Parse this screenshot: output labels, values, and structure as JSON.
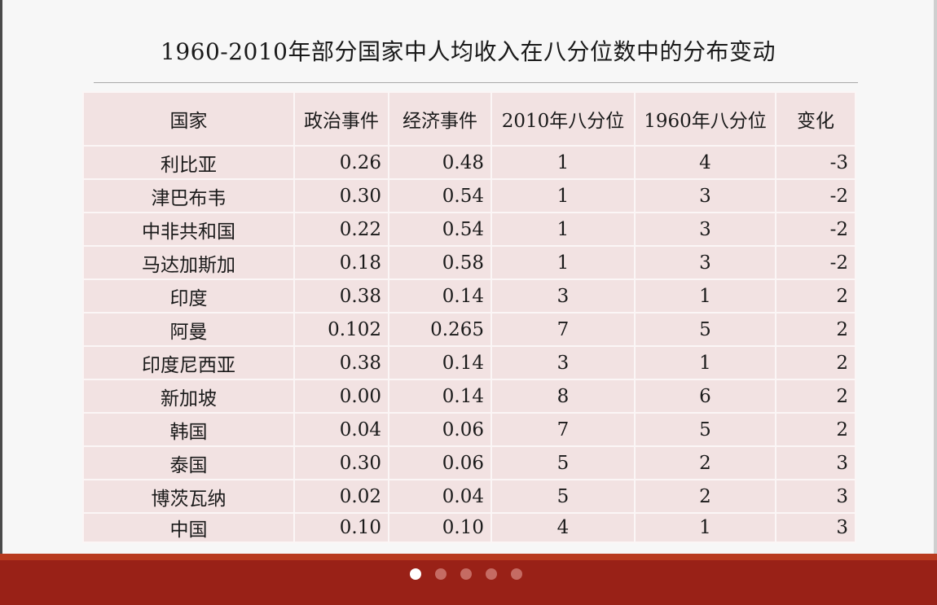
{
  "title": "1960-2010年部分国家中人均收入在八分位数中的分布变动",
  "table": {
    "headers": [
      "国家",
      "政治事件",
      "经济事件",
      "2010年八分位",
      "1960年八分位",
      "变化"
    ],
    "rows": [
      [
        "利比亚",
        "0.26",
        "0.48",
        "1",
        "4",
        "-3"
      ],
      [
        "津巴布韦",
        "0.30",
        "0.54",
        "1",
        "3",
        "-2"
      ],
      [
        "中非共和国",
        "0.22",
        "0.54",
        "1",
        "3",
        "-2"
      ],
      [
        "马达加斯加",
        "0.18",
        "0.58",
        "1",
        "3",
        "-2"
      ],
      [
        "印度",
        "0.38",
        "0.14",
        "3",
        "1",
        "2"
      ],
      [
        "阿曼",
        "0.102",
        "0.265",
        "7",
        "5",
        "2"
      ],
      [
        "印度尼西亚",
        "0.38",
        "0.14",
        "3",
        "1",
        "2"
      ],
      [
        "新加坡",
        "0.00",
        "0.14",
        "8",
        "6",
        "2"
      ],
      [
        "韩国",
        "0.04",
        "0.06",
        "7",
        "5",
        "2"
      ],
      [
        "泰国",
        "0.30",
        "0.06",
        "5",
        "2",
        "3"
      ],
      [
        "博茨瓦纳",
        "0.02",
        "0.04",
        "5",
        "2",
        "3"
      ],
      [
        "中国",
        "0.10",
        "0.10",
        "4",
        "1",
        "3"
      ]
    ]
  },
  "pager": {
    "count": 5,
    "active_index": 0
  },
  "colors": {
    "bar": "#992117",
    "cell": "#f2e2e2"
  }
}
